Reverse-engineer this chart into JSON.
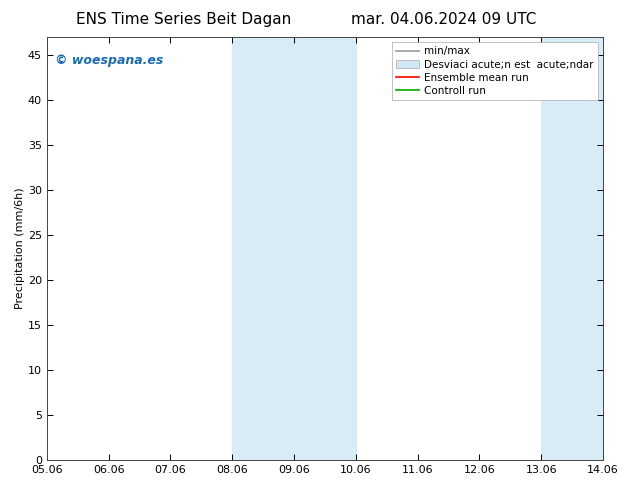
{
  "title_left": "ENS Time Series Beit Dagan",
  "title_right": "mar. 04.06.2024 09 UTC",
  "ylabel": "Precipitation (mm/6h)",
  "xlabel": "",
  "ylim": [
    0,
    47
  ],
  "yticks": [
    0,
    5,
    10,
    15,
    20,
    25,
    30,
    35,
    40,
    45
  ],
  "xtick_labels": [
    "05.06",
    "06.06",
    "07.06",
    "08.06",
    "09.06",
    "10.06",
    "11.06",
    "12.06",
    "13.06",
    "14.06"
  ],
  "xlim": [
    0,
    9
  ],
  "shade_bands": [
    {
      "xmin": 3.0,
      "xmax": 5.0,
      "color": "#d8ecf8"
    },
    {
      "xmin": 8.0,
      "xmax": 9.0,
      "color": "#d8ecf8"
    }
  ],
  "watermark": "© woespana.es",
  "watermark_color": "#1a6bb5",
  "legend_label_minmax": "min/max",
  "legend_label_std": "Desviaci acute;n est  acute;ndar",
  "legend_label_ensemble": "Ensemble mean run",
  "legend_label_control": "Controll run",
  "legend_color_minmax": "#999999",
  "legend_color_std": "#d0e8f5",
  "legend_color_ensemble": "#ff0000",
  "legend_color_control": "#00aa00",
  "bg_color": "#ffffff",
  "plot_bg_color": "#ffffff",
  "title_fontsize": 11,
  "axis_fontsize": 8,
  "ylabel_fontsize": 8,
  "legend_fontsize": 7.5
}
